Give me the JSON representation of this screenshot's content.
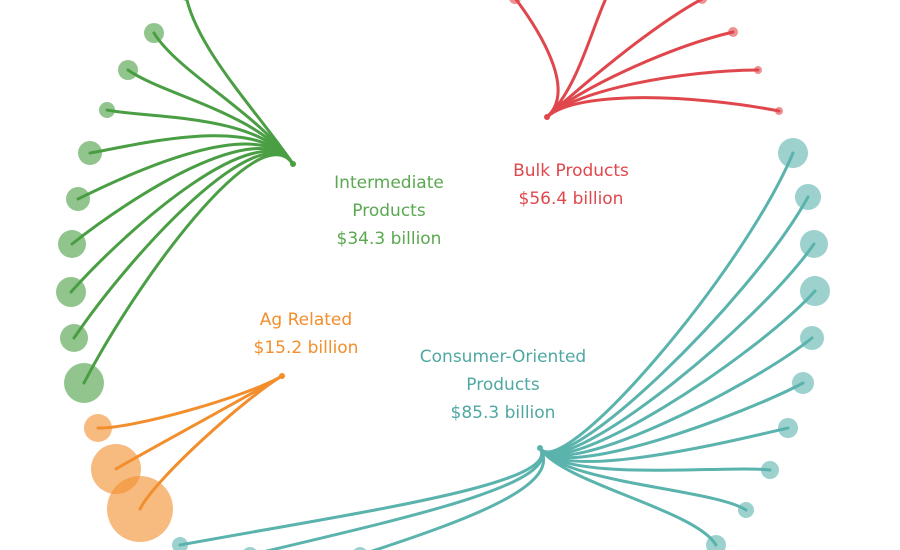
{
  "chart_data": {
    "type": "radial-tree",
    "title": "",
    "series": [
      {
        "key": "intermediate",
        "name_lines": [
          "Intermediate",
          "Products"
        ],
        "value_text": "$34.3 billion",
        "value": 34.3,
        "color": "#4a9e43",
        "leaf_count": 17
      },
      {
        "key": "bulk",
        "name_lines": [
          "Bulk Products"
        ],
        "value_text": "$56.4 billion",
        "value": 56.4,
        "color": "#e0474c",
        "leaf_count": 7
      },
      {
        "key": "consumer",
        "name_lines": [
          "Consumer-Oriented",
          "Products"
        ],
        "value_text": "$85.3 billion",
        "value": 85.3,
        "color": "#5ab3ad",
        "leaf_count": 16
      },
      {
        "key": "ag",
        "name_lines": [
          "Ag Related"
        ],
        "value_text": "$15.2 billion",
        "value": 15.2,
        "color": "#f28e2b",
        "leaf_count": 3
      }
    ]
  }
}
